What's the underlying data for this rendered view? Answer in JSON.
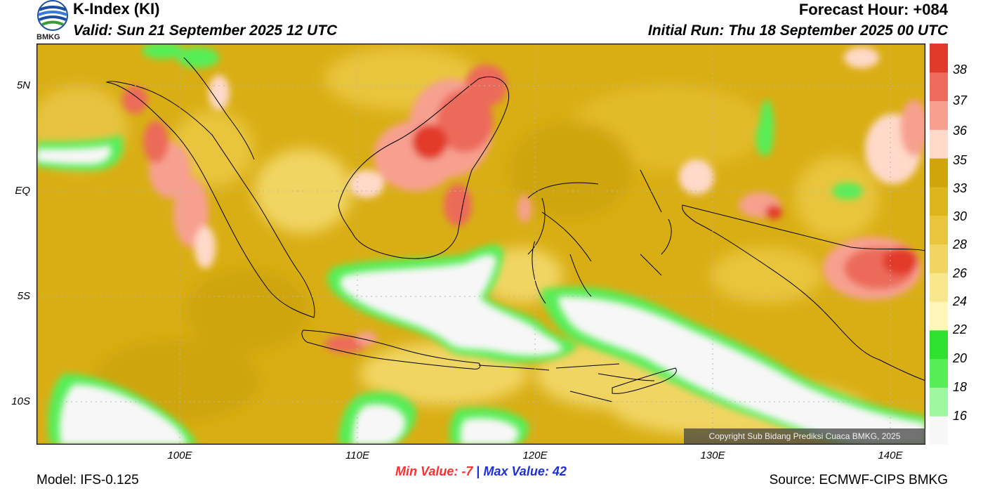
{
  "header": {
    "logo_text": "BMKG",
    "title": "K-Index (KI)",
    "valid": "Valid: Sun 21 September 2025 12 UTC",
    "forecast_hour": "Forecast Hour: +084",
    "initial_run": "Initial Run: Thu 18 September 2025 00 UTC"
  },
  "map": {
    "lat_labels": [
      "5N",
      "EQ",
      "5S",
      "10S"
    ],
    "lon_labels": [
      "100E",
      "110E",
      "120E",
      "130E",
      "140E"
    ],
    "copyright": "Copyright Sub Bidang Prediksi Cuaca BMKG, 2025"
  },
  "colorbar": {
    "levels": [
      "16",
      "18",
      "20",
      "22",
      "24",
      "26",
      "28",
      "30",
      "33",
      "35",
      "36",
      "37",
      "38"
    ],
    "colors": [
      "#f7f7f7",
      "#9ef79e",
      "#56ee56",
      "#2fe22f",
      "#fff6b8",
      "#f8e78c",
      "#f1d563",
      "#e9c53c",
      "#dcb61c",
      "#cfa50a",
      "#ffd9c9",
      "#f7a090",
      "#ec6b5a",
      "#e23a2a"
    ]
  },
  "stats": {
    "min_label": "Min Value:",
    "min_value": "-7",
    "separator": "|",
    "max_label": "Max Value:",
    "max_value": "42"
  },
  "footer": {
    "model": "Model: IFS-0.125",
    "source": "Source: ECMWF-CIPS BMKG"
  }
}
